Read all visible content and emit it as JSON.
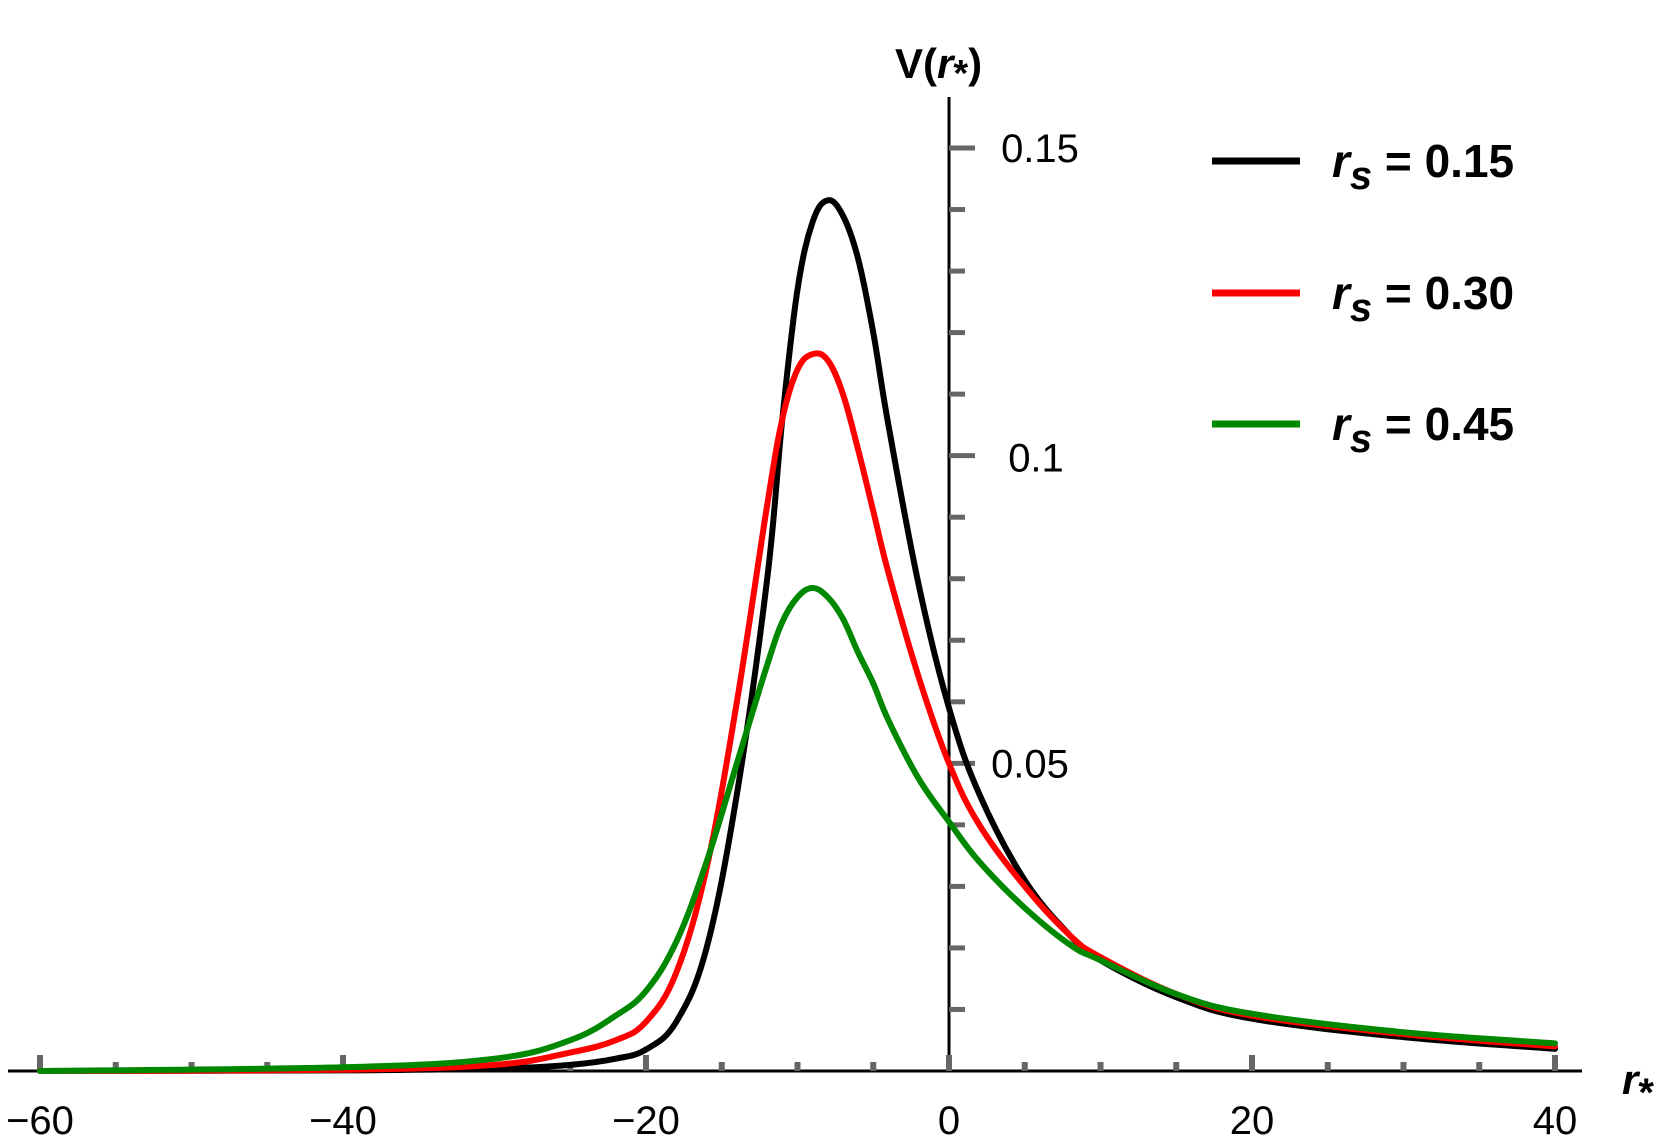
{
  "chart_data": {
    "type": "line",
    "xlabel": {
      "main": "r",
      "sub": "*"
    },
    "ylabel": {
      "main": "V(",
      "var": "r",
      "sub": "*",
      "close": ")"
    },
    "xlim": [
      -60,
      40
    ],
    "ylim": [
      0,
      0.155
    ],
    "x_ticks": [
      -60,
      -40,
      -20,
      0,
      20,
      40
    ],
    "x_tick_labels": [
      "−60",
      "−40",
      "−20",
      "0",
      "20",
      "40"
    ],
    "y_ticks": [
      0.05,
      0.1,
      0.15
    ],
    "y_tick_labels": [
      "0.05",
      "0.1",
      "0.15"
    ],
    "legend_position": "top-right",
    "series": [
      {
        "name": "r_s = 0.15",
        "legend": {
          "var": "r",
          "sub": "s",
          "text": " = 0.15"
        },
        "color": "#000000",
        "x": [
          -60,
          -40,
          -30,
          -25,
          -22,
          -20,
          -18,
          -16,
          -14,
          -12,
          -11,
          -10,
          -9,
          -8,
          -7,
          -6,
          -5,
          -4,
          -2,
          0,
          2,
          5,
          8,
          10,
          15,
          20,
          30,
          40
        ],
        "y": [
          0,
          0.0001,
          0.0004,
          0.001,
          0.002,
          0.0035,
          0.008,
          0.02,
          0.045,
          0.08,
          0.106,
          0.127,
          0.138,
          0.1415,
          0.139,
          0.132,
          0.12,
          0.105,
          0.079,
          0.059,
          0.045,
          0.031,
          0.022,
          0.018,
          0.012,
          0.0085,
          0.0055,
          0.0036
        ]
      },
      {
        "name": "r_s = 0.30",
        "legend": {
          "var": "r",
          "sub": "s",
          "text": " = 0.30"
        },
        "color": "#ff0000",
        "x": [
          -60,
          -40,
          -30,
          -25,
          -22,
          -20,
          -18,
          -16,
          -14,
          -12,
          -11,
          -10,
          -9,
          -8,
          -7,
          -6,
          -5,
          -4,
          -2,
          0,
          2,
          5,
          8,
          10,
          15,
          20,
          30,
          40
        ],
        "y": [
          0,
          0.0002,
          0.001,
          0.003,
          0.005,
          0.008,
          0.016,
          0.033,
          0.06,
          0.092,
          0.106,
          0.114,
          0.1165,
          0.1155,
          0.11,
          0.101,
          0.091,
          0.081,
          0.064,
          0.05,
          0.04,
          0.03,
          0.022,
          0.0185,
          0.0125,
          0.009,
          0.006,
          0.004
        ]
      },
      {
        "name": "r_s = 0.45",
        "legend": {
          "var": "r",
          "sub": "s",
          "text": " = 0.45"
        },
        "color": "#008800",
        "x": [
          -60,
          -40,
          -30,
          -25,
          -22,
          -20,
          -18,
          -16,
          -14,
          -12,
          -11,
          -10,
          -9,
          -8,
          -7,
          -6,
          -5,
          -4,
          -2,
          0,
          2,
          5,
          8,
          10,
          15,
          20,
          30,
          40
        ],
        "y": [
          0,
          0.0006,
          0.002,
          0.005,
          0.009,
          0.013,
          0.021,
          0.034,
          0.05,
          0.066,
          0.073,
          0.077,
          0.0785,
          0.077,
          0.0735,
          0.068,
          0.063,
          0.057,
          0.0475,
          0.0405,
          0.034,
          0.0265,
          0.0205,
          0.018,
          0.0125,
          0.0093,
          0.0063,
          0.0045
        ]
      }
    ]
  }
}
